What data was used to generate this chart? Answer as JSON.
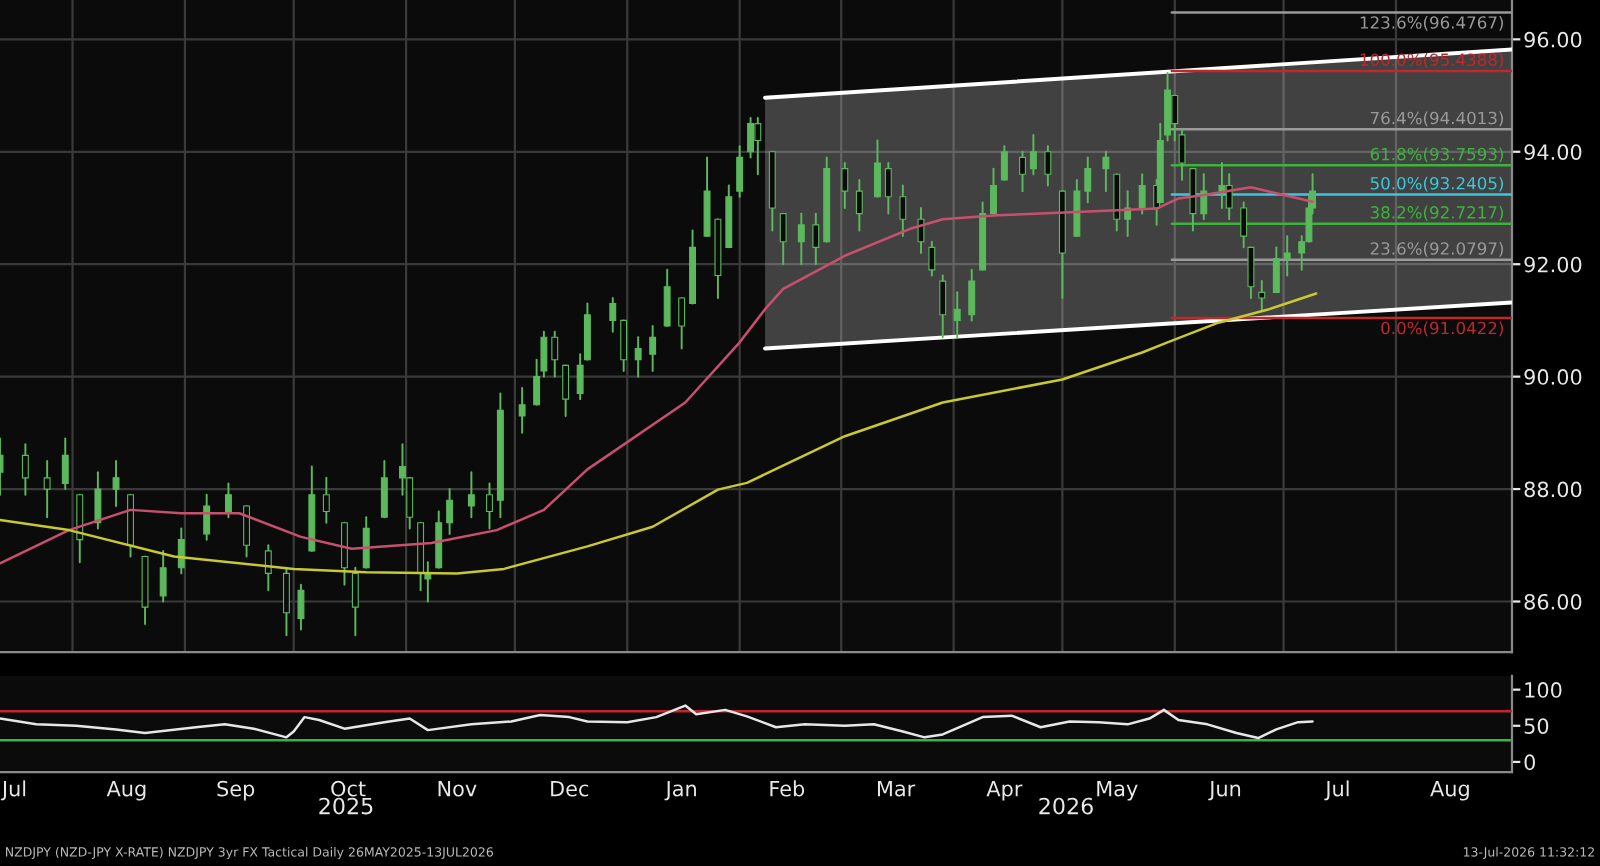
{
  "chart_data": [
    {
      "type": "candlestick",
      "x": [
        "2025-07-12",
        "2025-07-19",
        "2025-07-25",
        "2025-07-30",
        "2025-08-03",
        "2025-08-08",
        "2025-08-13",
        "2025-08-17",
        "2025-08-21",
        "2025-08-26",
        "2025-08-31",
        "2025-09-07",
        "2025-09-13",
        "2025-09-18",
        "2025-09-24",
        "2025-09-29",
        "2025-10-03",
        "2025-10-06",
        "2025-10-10",
        "2025-10-15",
        "2025-10-18",
        "2025-10-21",
        "2025-10-26",
        "2025-10-31",
        "2025-11-02",
        "2025-11-05",
        "2025-11-07",
        "2025-11-10",
        "2025-11-13",
        "2025-11-19",
        "2025-11-24",
        "2025-11-27",
        "2025-12-03",
        "2025-12-07",
        "2025-12-09",
        "2025-12-12",
        "2025-12-15",
        "2025-12-19",
        "2025-12-21",
        "2025-12-28",
        "2025-12-31",
        "2026-01-04",
        "2026-01-08",
        "2026-01-12",
        "2026-01-16",
        "2026-01-19",
        "2026-01-23",
        "2026-01-26",
        "2026-01-29",
        "2026-02-01",
        "2026-02-04",
        "2026-02-06",
        "2026-02-10",
        "2026-02-13",
        "2026-02-18",
        "2026-02-22",
        "2026-02-25",
        "2026-03-02",
        "2026-03-06",
        "2026-03-11",
        "2026-03-14",
        "2026-03-18",
        "2026-03-23",
        "2026-03-26",
        "2026-03-29",
        "2026-04-02",
        "2026-04-06",
        "2026-04-09",
        "2026-04-12",
        "2026-04-15",
        "2026-04-20",
        "2026-04-23",
        "2026-04-27",
        "2026-05-01",
        "2026-05-05",
        "2026-05-08",
        "2026-05-13",
        "2026-05-16",
        "2026-05-19",
        "2026-05-23",
        "2026-05-27",
        "2026-05-28",
        "2026-05-30",
        "2026-06-01",
        "2026-06-03",
        "2026-06-06",
        "2026-06-09",
        "2026-06-14",
        "2026-06-16",
        "2026-06-20",
        "2026-06-22",
        "2026-06-25",
        "2026-06-29",
        "2026-07-02",
        "2026-07-06",
        "2026-07-08",
        "2026-07-09"
      ],
      "ohlc": [
        [
          88.3,
          88.9,
          87.9,
          88.6
        ],
        [
          88.6,
          88.8,
          87.9,
          88.2
        ],
        [
          88.2,
          88.5,
          87.5,
          88.0
        ],
        [
          88.1,
          88.9,
          88.0,
          88.6
        ],
        [
          87.9,
          87.9,
          86.7,
          87.1
        ],
        [
          87.4,
          88.3,
          87.3,
          88.0
        ],
        [
          88.0,
          88.5,
          87.7,
          88.2
        ],
        [
          87.9,
          87.9,
          86.8,
          87.0
        ],
        [
          86.8,
          86.8,
          85.6,
          85.9
        ],
        [
          86.1,
          86.9,
          86.0,
          86.6
        ],
        [
          86.6,
          87.3,
          86.5,
          87.1
        ],
        [
          87.2,
          87.9,
          87.1,
          87.7
        ],
        [
          87.6,
          88.1,
          87.5,
          87.9
        ],
        [
          87.7,
          87.7,
          86.8,
          87.0
        ],
        [
          86.9,
          87.0,
          86.2,
          86.5
        ],
        [
          86.5,
          86.6,
          85.4,
          85.8
        ],
        [
          85.7,
          86.3,
          85.5,
          86.2
        ],
        [
          86.9,
          88.4,
          86.9,
          87.9
        ],
        [
          87.9,
          88.2,
          87.4,
          87.6
        ],
        [
          87.4,
          87.4,
          86.3,
          86.6
        ],
        [
          86.5,
          86.6,
          85.4,
          85.9
        ],
        [
          86.6,
          87.5,
          86.6,
          87.3
        ],
        [
          87.5,
          88.5,
          87.5,
          88.2
        ],
        [
          88.2,
          88.8,
          87.9,
          88.4
        ],
        [
          88.2,
          88.2,
          87.3,
          87.5
        ],
        [
          87.4,
          87.4,
          86.2,
          86.5
        ],
        [
          86.4,
          86.7,
          86.0,
          86.5
        ],
        [
          86.6,
          87.6,
          86.6,
          87.4
        ],
        [
          87.4,
          88.0,
          87.2,
          87.8
        ],
        [
          87.7,
          88.3,
          87.5,
          87.9
        ],
        [
          87.9,
          88.1,
          87.3,
          87.6
        ],
        [
          87.8,
          89.7,
          87.5,
          89.4
        ],
        [
          89.3,
          89.8,
          89.0,
          89.5
        ],
        [
          89.5,
          90.3,
          89.5,
          90.0
        ],
        [
          90.1,
          90.8,
          90.0,
          90.7
        ],
        [
          90.7,
          90.8,
          90.0,
          90.3
        ],
        [
          90.2,
          90.2,
          89.3,
          89.6
        ],
        [
          89.7,
          90.4,
          89.6,
          90.2
        ],
        [
          90.3,
          91.3,
          90.3,
          91.1
        ],
        [
          91.0,
          91.4,
          90.8,
          91.3
        ],
        [
          91.0,
          91.0,
          90.1,
          90.3
        ],
        [
          90.3,
          90.7,
          90.0,
          90.5
        ],
        [
          90.4,
          90.9,
          90.1,
          90.7
        ],
        [
          90.9,
          91.9,
          90.9,
          91.6
        ],
        [
          91.4,
          91.4,
          90.5,
          90.9
        ],
        [
          91.3,
          92.6,
          91.3,
          92.3
        ],
        [
          92.5,
          93.9,
          92.5,
          93.3
        ],
        [
          92.8,
          92.8,
          91.4,
          91.8
        ],
        [
          92.3,
          93.4,
          92.3,
          93.2
        ],
        [
          93.3,
          94.1,
          93.2,
          93.9
        ],
        [
          94.0,
          94.6,
          93.9,
          94.5
        ],
        [
          94.5,
          94.6,
          93.6,
          94.2
        ],
        [
          94.0,
          94.0,
          92.6,
          93.0
        ],
        [
          92.9,
          92.9,
          92.0,
          92.4
        ],
        [
          92.4,
          92.9,
          92.0,
          92.7
        ],
        [
          92.7,
          92.9,
          92.0,
          92.3
        ],
        [
          92.4,
          93.9,
          92.4,
          93.7
        ],
        [
          93.7,
          93.8,
          93.0,
          93.3
        ],
        [
          93.3,
          93.5,
          92.6,
          92.9
        ],
        [
          93.2,
          94.2,
          93.2,
          93.8
        ],
        [
          93.7,
          93.8,
          92.9,
          93.2
        ],
        [
          93.2,
          93.4,
          92.5,
          92.8
        ],
        [
          92.8,
          93.0,
          92.2,
          92.4
        ],
        [
          92.3,
          92.4,
          91.8,
          91.9
        ],
        [
          91.7,
          91.8,
          90.7,
          91.1
        ],
        [
          91.0,
          91.5,
          90.7,
          91.2
        ],
        [
          91.1,
          91.9,
          91.0,
          91.7
        ],
        [
          91.9,
          93.1,
          91.9,
          92.9
        ],
        [
          92.9,
          93.7,
          92.9,
          93.4
        ],
        [
          93.5,
          94.1,
          93.5,
          94.0
        ],
        [
          93.9,
          94.0,
          93.3,
          93.6
        ],
        [
          93.7,
          94.3,
          93.6,
          94.0
        ],
        [
          94.0,
          94.1,
          93.4,
          93.6
        ],
        [
          93.3,
          93.3,
          91.4,
          92.2
        ],
        [
          92.5,
          93.5,
          92.5,
          93.3
        ],
        [
          93.3,
          93.9,
          93.1,
          93.7
        ],
        [
          93.7,
          94.0,
          93.3,
          93.9
        ],
        [
          93.6,
          93.6,
          92.6,
          92.8
        ],
        [
          92.8,
          93.3,
          92.5,
          93.0
        ],
        [
          93.0,
          93.6,
          92.9,
          93.4
        ],
        [
          93.4,
          93.5,
          92.7,
          93.0
        ],
        [
          93.1,
          94.5,
          93.1,
          94.2
        ],
        [
          94.3,
          95.4,
          94.2,
          95.1
        ],
        [
          95.0,
          95.0,
          94.2,
          94.5
        ],
        [
          94.3,
          94.4,
          93.5,
          93.8
        ],
        [
          93.7,
          93.7,
          92.6,
          92.9
        ],
        [
          92.9,
          93.6,
          92.8,
          93.3
        ],
        [
          93.3,
          93.8,
          93.0,
          93.4
        ],
        [
          93.4,
          93.6,
          92.8,
          93.0
        ],
        [
          93.0,
          93.1,
          92.3,
          92.5
        ],
        [
          92.3,
          92.3,
          91.4,
          91.6
        ],
        [
          91.5,
          91.7,
          91.2,
          91.4
        ],
        [
          91.5,
          92.3,
          91.5,
          92.1
        ],
        [
          92.1,
          92.5,
          91.8,
          92.2
        ],
        [
          92.2,
          92.5,
          91.9,
          92.4
        ],
        [
          92.4,
          93.2,
          92.4,
          93.0
        ],
        [
          93.0,
          93.6,
          92.9,
          93.3
        ]
      ],
      "series": [
        {
          "type": "line",
          "color": "#c8506e",
          "x": [
            "2025-07-12",
            "2025-07-31",
            "2025-08-17",
            "2025-08-31",
            "2025-09-16",
            "2025-10-03",
            "2025-10-17",
            "2025-11-08",
            "2025-11-26",
            "2025-12-09",
            "2025-12-21",
            "2026-01-17",
            "2026-02-01",
            "2026-02-08",
            "2026-02-13",
            "2026-03-02",
            "2026-03-20",
            "2026-03-29",
            "2026-04-13",
            "2026-05-05",
            "2026-05-27",
            "2026-06-02",
            "2026-06-09",
            "2026-06-22",
            "2026-07-01",
            "2026-07-09"
          ],
          "values": [
            86.68,
            87.27,
            87.63,
            87.57,
            87.57,
            87.15,
            86.94,
            87.04,
            87.27,
            87.63,
            88.35,
            89.54,
            90.61,
            91.2,
            91.56,
            92.15,
            92.63,
            92.8,
            92.87,
            92.93,
            92.99,
            93.17,
            93.23,
            93.37,
            93.23,
            93.11
          ]
        },
        {
          "type": "line",
          "color": "#c8c832",
          "x": [
            "2025-07-12",
            "2025-07-31",
            "2025-08-29",
            "2025-10-01",
            "2025-10-21",
            "2025-11-15",
            "2025-11-28",
            "2025-12-21",
            "2026-01-08",
            "2026-01-26",
            "2026-02-03",
            "2026-03-02",
            "2026-03-29",
            "2026-05-01",
            "2026-05-23",
            "2026-05-30",
            "2026-06-13",
            "2026-06-27",
            "2026-07-10"
          ],
          "values": [
            87.45,
            87.27,
            86.8,
            86.58,
            86.52,
            86.5,
            86.58,
            86.98,
            87.33,
            87.99,
            88.11,
            88.94,
            89.54,
            89.95,
            90.43,
            90.61,
            90.96,
            91.2,
            91.48
          ]
        },
        {
          "type": "line",
          "color": "#ffffff",
          "x": [
            "2026-02-08",
            "2026-09-02"
          ],
          "values": [
            null,
            null
          ],
          "lower": [
            90.5,
            91.32
          ],
          "upper": [
            94.96,
            95.82
          ]
        }
      ],
      "xlim": [
        "2025-07-12",
        "2026-09-02"
      ],
      "ylim": [
        85.1,
        96.7
      ],
      "xticks": [
        {
          "value": "2025-08-01",
          "label": null
        },
        {
          "value": "2025-09-01",
          "label": null
        },
        {
          "value": "2025-10-01",
          "label": null
        },
        {
          "value": "2025-11-01",
          "label": null
        },
        {
          "value": "2025-12-01",
          "label": null
        },
        {
          "value": "2026-01-01",
          "label": null
        },
        {
          "value": "2026-02-01",
          "label": null
        },
        {
          "value": "2026-03-01",
          "label": null
        },
        {
          "value": "2026-04-01",
          "label": null
        },
        {
          "value": "2026-05-01",
          "label": null
        },
        {
          "value": "2026-06-01",
          "label": null
        },
        {
          "value": "2026-07-01",
          "label": null
        },
        {
          "value": "2026-08-01",
          "label": null
        }
      ],
      "yticks": [
        {
          "value": 86,
          "label": "86.00"
        },
        {
          "value": 88,
          "label": "88.00"
        },
        {
          "value": 90,
          "label": "90.00"
        },
        {
          "value": 92,
          "label": "92.00"
        },
        {
          "value": 94,
          "label": "94.00"
        },
        {
          "value": 96,
          "label": "96.00"
        }
      ],
      "tick_labels": "y",
      "grid": true,
      "ref_lines": [
        {
          "axis": "y",
          "value": 96.4767,
          "label": "123.6%(96.4767)",
          "color": "#9a9a9a"
        },
        {
          "axis": "y",
          "value": 95.4388,
          "label": "100.0%(95.4388)",
          "color": "#c0282d"
        },
        {
          "axis": "y",
          "value": 94.4013,
          "label": "76.4%(94.4013)",
          "color": "#9a9a9a"
        },
        {
          "axis": "y",
          "value": 93.7593,
          "label": "61.8%(93.7593)",
          "color": "#3cb43c"
        },
        {
          "axis": "y",
          "value": 93.2405,
          "label": "50.0%(93.2405)",
          "color": "#3cc8dc"
        },
        {
          "axis": "y",
          "value": 92.7217,
          "label": "38.2%(92.7217)",
          "color": "#3cb43c"
        },
        {
          "axis": "y",
          "value": 92.0797,
          "label": "23.6%(92.0797)",
          "color": "#9a9a9a"
        },
        {
          "axis": "y",
          "value": 91.0422,
          "label": "0.0%(91.0422)",
          "color": "#c0282d"
        }
      ]
    },
    {
      "type": "line",
      "series": [
        {
          "color": "#e6e6e6",
          "x": [
            "2025-07-12",
            "2025-07-22",
            "2025-08-02",
            "2025-08-13",
            "2025-08-21",
            "2025-09-04",
            "2025-09-12",
            "2025-09-20",
            "2025-09-29",
            "2025-10-01",
            "2025-10-04",
            "2025-10-08",
            "2025-10-15",
            "2025-10-26",
            "2025-11-02",
            "2025-11-07",
            "2025-11-19",
            "2025-11-30",
            "2025-12-08",
            "2025-12-16",
            "2025-12-21",
            "2026-01-01",
            "2026-01-09",
            "2026-01-17",
            "2026-01-20",
            "2026-01-28",
            "2026-02-03",
            "2026-02-11",
            "2026-02-19",
            "2026-03-02",
            "2026-03-10",
            "2026-03-18",
            "2026-03-24",
            "2026-03-29",
            "2026-04-09",
            "2026-04-17",
            "2026-04-25",
            "2026-05-03",
            "2026-05-11",
            "2026-05-19",
            "2026-05-25",
            "2026-05-29",
            "2026-06-02",
            "2026-06-10",
            "2026-06-18",
            "2026-06-24",
            "2026-06-29",
            "2026-07-05",
            "2026-07-09"
          ],
          "values": [
            60,
            52,
            50,
            45,
            40,
            48,
            52,
            46,
            34,
            42,
            62,
            58,
            46,
            55,
            60,
            44,
            52,
            56,
            65,
            62,
            56,
            55,
            62,
            78,
            66,
            72,
            63,
            48,
            52,
            50,
            52,
            42,
            34,
            38,
            62,
            64,
            48,
            56,
            55,
            52,
            60,
            72,
            58,
            52,
            40,
            33,
            45,
            55,
            56
          ]
        }
      ],
      "xlim": [
        "2025-07-12",
        "2026-09-02"
      ],
      "ylim": [
        -14,
        119
      ],
      "xticks": [
        {
          "value": "2025-07-16",
          "label": "Jul"
        },
        {
          "value": "2025-08-16",
          "label": "Aug"
        },
        {
          "value": "2025-09-15",
          "label": "Sep"
        },
        {
          "value": "2025-10-16",
          "label": "Oct"
        },
        {
          "value": "2025-11-15",
          "label": "Nov"
        },
        {
          "value": "2025-12-16",
          "label": "Dec"
        },
        {
          "value": "2026-01-16",
          "label": "Jan"
        },
        {
          "value": "2026-02-14",
          "label": "Feb"
        },
        {
          "value": "2026-03-16",
          "label": "Mar"
        },
        {
          "value": "2026-04-15",
          "label": "Apr"
        },
        {
          "value": "2026-05-16",
          "label": "May"
        },
        {
          "value": "2026-06-15",
          "label": "Jun"
        },
        {
          "value": "2026-07-16",
          "label": "Jul"
        },
        {
          "value": "2026-08-16",
          "label": "Aug"
        }
      ],
      "yticks": [
        0,
        50,
        100
      ],
      "ref_lines": [
        {
          "axis": "y",
          "value": 70,
          "color": "#c0282d"
        },
        {
          "axis": "y",
          "value": 30,
          "color": "#3cb43c"
        }
      ],
      "annotations": [
        "2025",
        "2026",
        "NZDJPY (NZD-JPY X-RATE) NZDJPY 3yr FX Tactical Daily 26MAY2025-13JUL2026",
        "13-Jul-2026 11:32:12"
      ]
    }
  ]
}
